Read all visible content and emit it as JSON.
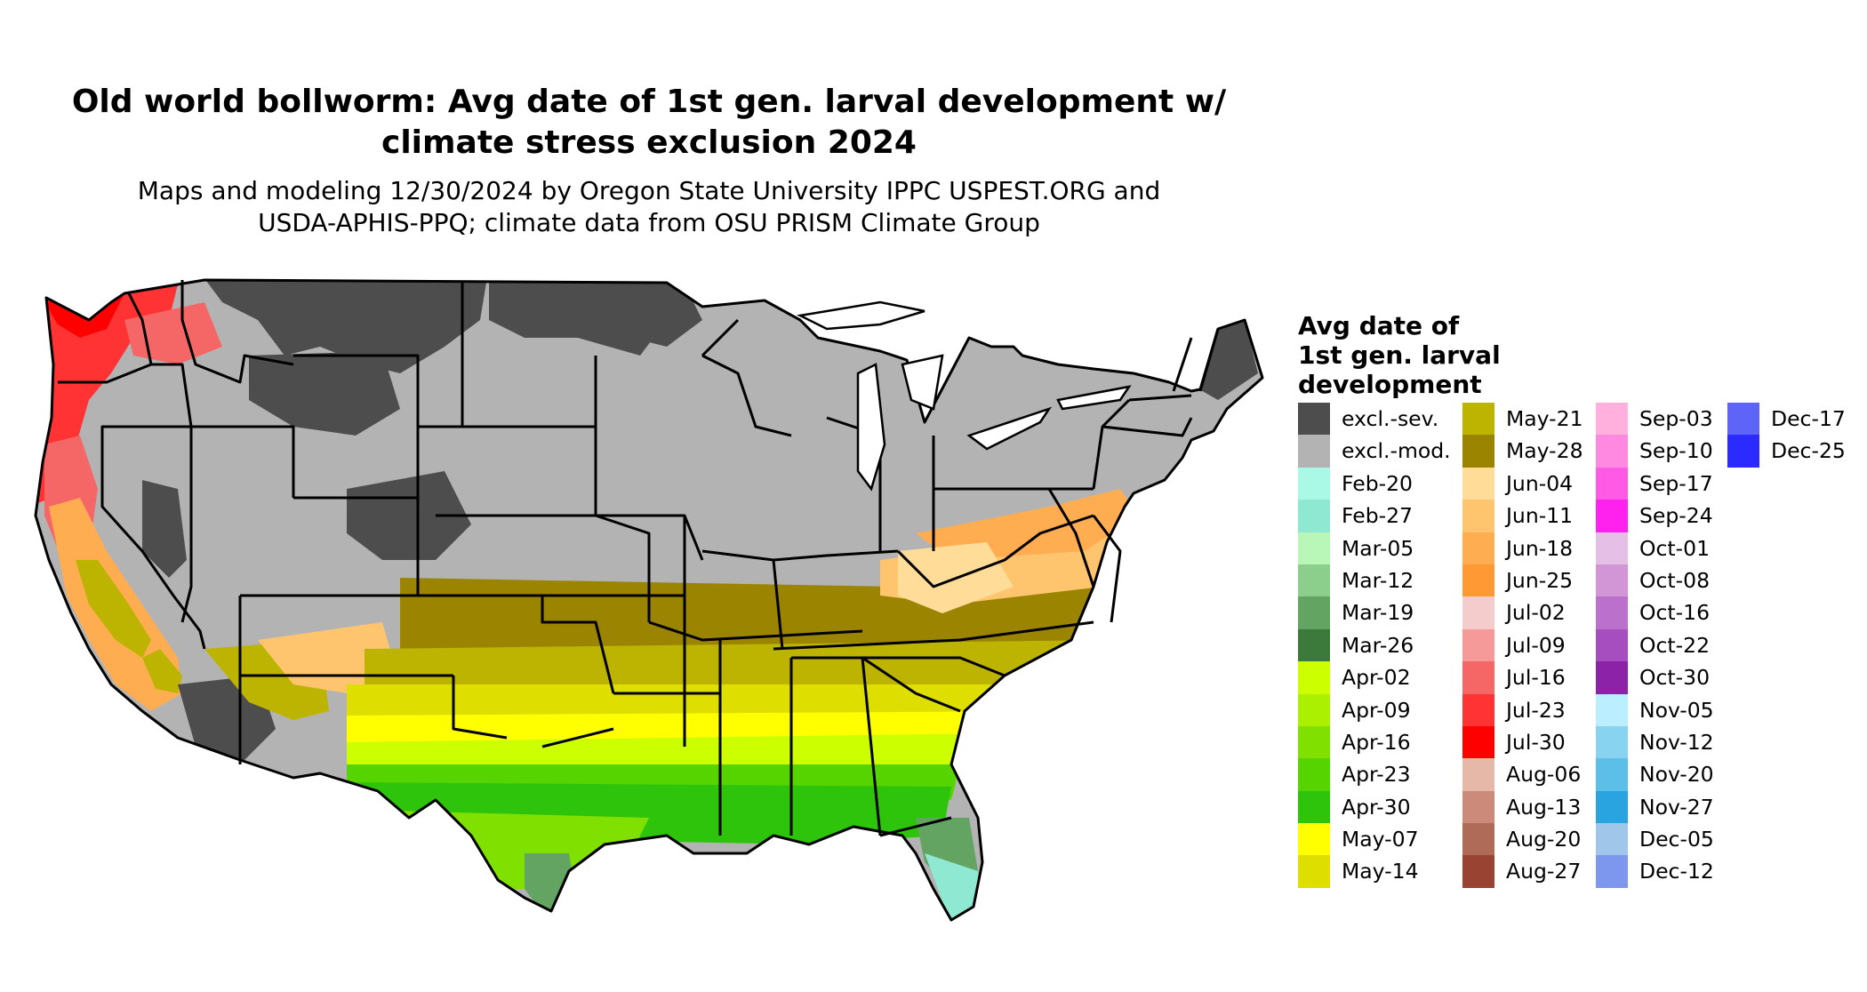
{
  "title_line1": "Old world bollworm: Avg date of 1st gen. larval development w/",
  "title_line2": "climate stress exclusion 2024",
  "subtitle_line1": "Maps and modeling 12/30/2024 by Oregon State University IPPC USPEST.ORG and",
  "subtitle_line2": "USDA-APHIS-PPQ; climate data from OSU PRISM Climate Group",
  "legend": {
    "title_lines": [
      "Avg date of",
      "1st gen. larval",
      "development"
    ],
    "columns": [
      [
        {
          "label": "excl.-sev.",
          "color": "#4d4d4d"
        },
        {
          "label": "excl.-mod.",
          "color": "#b3b3b3"
        },
        {
          "label": "Feb-20",
          "color": "#aaf8e6"
        },
        {
          "label": "Feb-27",
          "color": "#8ee8d2"
        },
        {
          "label": "Mar-05",
          "color": "#b8f7b8"
        },
        {
          "label": "Mar-12",
          "color": "#8ccf8c"
        },
        {
          "label": "Mar-19",
          "color": "#63a463"
        },
        {
          "label": "Mar-26",
          "color": "#3b7a3b"
        },
        {
          "label": "Apr-02",
          "color": "#ccff00"
        },
        {
          "label": "Apr-09",
          "color": "#aaf000"
        },
        {
          "label": "Apr-16",
          "color": "#80e000"
        },
        {
          "label": "Apr-23",
          "color": "#55d400"
        },
        {
          "label": "Apr-30",
          "color": "#2ec40c"
        },
        {
          "label": "May-07",
          "color": "#ffff00"
        },
        {
          "label": "May-14",
          "color": "#dede00"
        }
      ],
      [
        {
          "label": "May-21",
          "color": "#bcb400"
        },
        {
          "label": "May-28",
          "color": "#9a8400"
        },
        {
          "label": "Jun-04",
          "color": "#ffdd99"
        },
        {
          "label": "Jun-11",
          "color": "#ffc46e"
        },
        {
          "label": "Jun-18",
          "color": "#ffad50"
        },
        {
          "label": "Jun-25",
          "color": "#ff9933"
        },
        {
          "label": "Jul-02",
          "color": "#f5cccc"
        },
        {
          "label": "Jul-09",
          "color": "#f59999"
        },
        {
          "label": "Jul-16",
          "color": "#f56666"
        },
        {
          "label": "Jul-23",
          "color": "#ff3333"
        },
        {
          "label": "Jul-30",
          "color": "#ff0000"
        },
        {
          "label": "Aug-06",
          "color": "#e6b8a8"
        },
        {
          "label": "Aug-13",
          "color": "#cc8b7a"
        },
        {
          "label": "Aug-20",
          "color": "#b06a58"
        },
        {
          "label": "Aug-27",
          "color": "#994433"
        }
      ],
      [
        {
          "label": "Sep-03",
          "color": "#ffb0dd"
        },
        {
          "label": "Sep-10",
          "color": "#ff88e0"
        },
        {
          "label": "Sep-17",
          "color": "#ff5ae6"
        },
        {
          "label": "Sep-24",
          "color": "#ff22ee"
        },
        {
          "label": "Oct-01",
          "color": "#e6bfe6"
        },
        {
          "label": "Oct-08",
          "color": "#d296d6"
        },
        {
          "label": "Oct-16",
          "color": "#bb70cc"
        },
        {
          "label": "Oct-22",
          "color": "#a64dbf"
        },
        {
          "label": "Oct-30",
          "color": "#8c22a8"
        },
        {
          "label": "Nov-05",
          "color": "#bbeeff"
        },
        {
          "label": "Nov-12",
          "color": "#88d4f0"
        },
        {
          "label": "Nov-20",
          "color": "#5cbfe8"
        },
        {
          "label": "Nov-27",
          "color": "#2aa4e0"
        },
        {
          "label": "Dec-05",
          "color": "#a0c6ea"
        },
        {
          "label": "Dec-12",
          "color": "#7d97ef"
        }
      ],
      [
        {
          "label": "Dec-17",
          "color": "#5e64f8"
        },
        {
          "label": "Dec-25",
          "color": "#2b2bff"
        }
      ]
    ]
  }
}
